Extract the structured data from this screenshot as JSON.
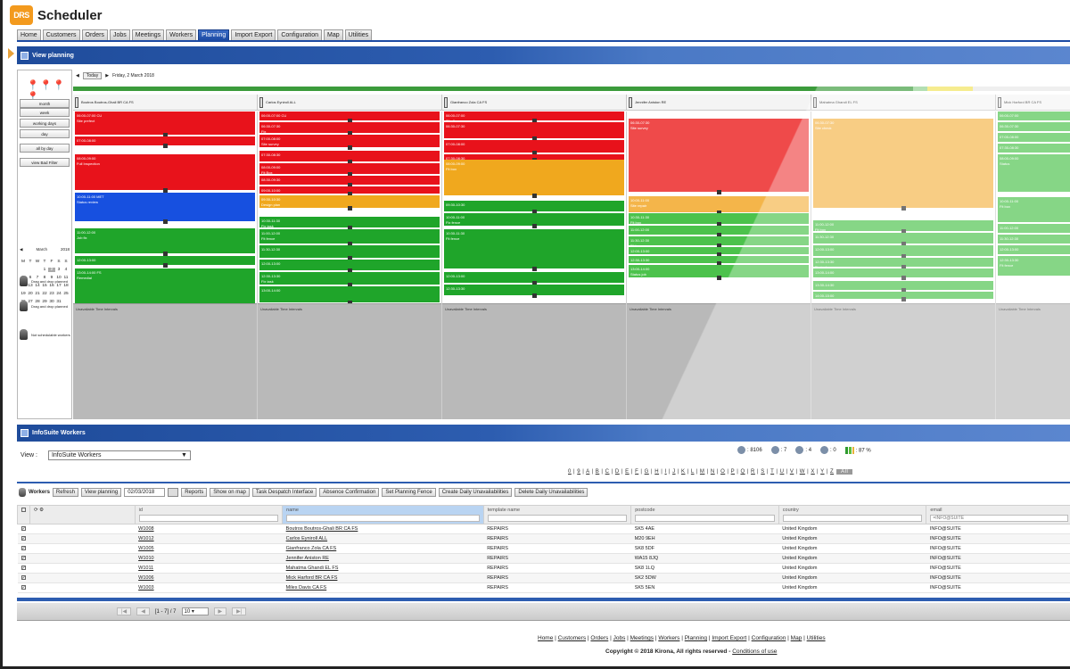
{
  "app": {
    "logo_text": "DRS",
    "title": "Scheduler"
  },
  "nav": [
    "Home",
    "Customers",
    "Orders",
    "Jobs",
    "Meetings",
    "Workers",
    "Planning",
    "Import Export",
    "Configuration",
    "Map",
    "Utilities"
  ],
  "nav_active": "Planning",
  "view_planning": {
    "title": "View planning"
  },
  "left_panel": {
    "buttons": [
      "month",
      "week",
      "working days",
      "day",
      "all by day",
      "view Bad Filter"
    ],
    "month_label": "March",
    "year_label": "2018",
    "weekdays": [
      "M",
      "T",
      "W",
      "T",
      "F",
      "S",
      "S"
    ],
    "days": [
      "",
      "",
      "",
      "1",
      "2",
      "3",
      "4",
      "5",
      "6",
      "7",
      "8",
      "9",
      "10",
      "11",
      "12",
      "13",
      "14",
      "15",
      "16",
      "17",
      "18",
      "19",
      "20",
      "21",
      "22",
      "23",
      "24",
      "25",
      "26",
      "27",
      "28",
      "29",
      "30",
      "31",
      ""
    ],
    "selected_day": "2",
    "groups": [
      "Drag and drop planned",
      "Drag and drop planned",
      "Not schedulable workers"
    ]
  },
  "gantt": {
    "toolbar_btn": "Today",
    "date_label": "Friday, 2 March 2018",
    "progress": {
      "done": 0.84,
      "light": 0.855,
      "marker": 0.9
    },
    "columns": [
      {
        "header": "Boutros Boutros-Ghali BR CA FS",
        "blocks": [
          {
            "c": "r",
            "t": 0,
            "h": 26,
            "l1": "06:00-07:00 CU",
            "l2": "Site prefect"
          },
          {
            "c": "r",
            "t": 28,
            "h": 10,
            "l1": "07:00-08:00",
            "l2": ""
          },
          {
            "c": "r",
            "t": 48,
            "h": 40,
            "l1": "08:00-09:00",
            "l2": "Full Inspection"
          },
          {
            "c": "b",
            "t": 91,
            "h": 32,
            "l1": "10:00-11:00 MET",
            "l2": "Status review"
          },
          {
            "c": "g",
            "t": 131,
            "h": 28,
            "l1": "11:00-12:00",
            "l2": "Job fix"
          },
          {
            "c": "g",
            "t": 162,
            "h": 10,
            "l1": "12:00-13:00",
            "l2": ""
          },
          {
            "c": "g",
            "t": 176,
            "h": 45,
            "l1": "13:00-14:00 FS",
            "l2": "Remedial"
          }
        ]
      },
      {
        "header": "Carlos Eyniroll ALL",
        "blocks": [
          {
            "c": "r",
            "t": 0,
            "h": 10,
            "l1": "06:00-07:00 CU",
            "l2": ""
          },
          {
            "c": "r",
            "t": 12,
            "h": 12,
            "l1": "06:30-07:30",
            "l2": "Fix"
          },
          {
            "c": "r",
            "t": 26,
            "h": 14,
            "l1": "07:00-08:00",
            "l2": "Site survey"
          },
          {
            "c": "r",
            "t": 44,
            "h": 12,
            "l1": "07:30-08:30",
            "l2": ""
          },
          {
            "c": "r",
            "t": 58,
            "h": 12,
            "l1": "08:00-09:00",
            "l2": "Fit Box"
          },
          {
            "c": "r",
            "t": 72,
            "h": 10,
            "l1": "08:30-09:30",
            "l2": ""
          },
          {
            "c": "r",
            "t": 84,
            "h": 8,
            "l1": "09:00-10:00",
            "l2": ""
          },
          {
            "c": "o",
            "t": 94,
            "h": 14,
            "l1": "09:30-10:30",
            "l2": "Design plan"
          },
          {
            "c": "g",
            "t": 118,
            "h": 12,
            "l1": "10:30-11:30",
            "l2": "Fix task"
          },
          {
            "c": "g",
            "t": 132,
            "h": 16,
            "l1": "11:00-12:00",
            "l2": "Fit fence"
          },
          {
            "c": "g",
            "t": 150,
            "h": 14,
            "l1": "11:30-12:30",
            "l2": ""
          },
          {
            "c": "g",
            "t": 166,
            "h": 12,
            "l1": "12:00-13:00",
            "l2": ""
          },
          {
            "c": "g",
            "t": 180,
            "h": 14,
            "l1": "12:30-13:30",
            "l2": "Fix task"
          },
          {
            "c": "g",
            "t": 196,
            "h": 18,
            "l1": "13:00-14:00",
            "l2": ""
          }
        ]
      },
      {
        "header": "Gianfranco Zola CA FS",
        "blocks": [
          {
            "c": "r",
            "t": 0,
            "h": 10,
            "l1": "06:00-07:00",
            "l2": "Site fix"
          },
          {
            "c": "r",
            "t": 12,
            "h": 18,
            "l1": "06:30-07:30",
            "l2": ""
          },
          {
            "c": "r",
            "t": 32,
            "h": 14,
            "l1": "07:00-08:00",
            "l2": ""
          },
          {
            "c": "r",
            "t": 48,
            "h": 6,
            "l1": "07:30-08:30",
            "l2": ""
          },
          {
            "c": "o",
            "t": 54,
            "h": 40,
            "l1": "08:00-09:00",
            "l2": "Fit box"
          },
          {
            "c": "g",
            "t": 100,
            "h": 12,
            "l1": "09:30-10:30",
            "l2": ""
          },
          {
            "c": "g",
            "t": 114,
            "h": 14,
            "l1": "10:00-11:00",
            "l2": "Fix fence"
          },
          {
            "c": "g",
            "t": 132,
            "h": 44,
            "l1": "10:30-11:30",
            "l2": "Fit fence"
          },
          {
            "c": "g",
            "t": 180,
            "h": 12,
            "l1": "12:00-13:00",
            "l2": ""
          },
          {
            "c": "g",
            "t": 194,
            "h": 12,
            "l1": "12:30-13:30",
            "l2": ""
          }
        ]
      },
      {
        "header": "Jennifer Aniston RE",
        "blocks": [
          {
            "c": "lr",
            "t": 8,
            "h": 82,
            "l1": "06:30-07:30",
            "l2": "Site survey"
          },
          {
            "c": "lo",
            "t": 95,
            "h": 18,
            "l1": "10:00-11:00",
            "l2": "Site repair"
          },
          {
            "c": "lg",
            "t": 114,
            "h": 12,
            "l1": "10:30-11:30",
            "l2": "Fit box"
          },
          {
            "c": "lg",
            "t": 128,
            "h": 10,
            "l1": "11:00-12:00",
            "l2": ""
          },
          {
            "c": "lg",
            "t": 140,
            "h": 10,
            "l1": "11:30-12:30",
            "l2": "Fit box"
          },
          {
            "c": "lg",
            "t": 152,
            "h": 8,
            "l1": "12:00-13:00",
            "l2": ""
          },
          {
            "c": "lg",
            "t": 162,
            "h": 8,
            "l1": "12:30-13:30",
            "l2": "Fit fence"
          },
          {
            "c": "lg",
            "t": 172,
            "h": 14,
            "l1": "13:00-14:00",
            "l2": "Status job"
          }
        ]
      },
      {
        "header": "Mahatma Ghandi EL FS",
        "blocks": [
          {
            "c": "lo",
            "t": 8,
            "h": 100,
            "l1": "06:30-07:30",
            "l2": "Site check"
          },
          {
            "c": "lg",
            "t": 122,
            "h": 12,
            "l1": "11:00-12:00",
            "l2": "Fit box"
          },
          {
            "c": "lg",
            "t": 136,
            "h": 12,
            "l1": "11:30-12:30",
            "l2": ""
          },
          {
            "c": "lg",
            "t": 150,
            "h": 12,
            "l1": "12:00-13:00",
            "l2": ""
          },
          {
            "c": "lg",
            "t": 164,
            "h": 10,
            "l1": "12:30-13:30",
            "l2": "Fix task"
          },
          {
            "c": "lg",
            "t": 176,
            "h": 10,
            "l1": "13:00-14:00",
            "l2": ""
          },
          {
            "c": "lg",
            "t": 190,
            "h": 10,
            "l1": "13:30-14:30",
            "l2": ""
          },
          {
            "c": "lg",
            "t": 202,
            "h": 8,
            "l1": "14:00-15:00",
            "l2": ""
          }
        ]
      },
      {
        "header": "Mick Harford BR CA FS",
        "blocks": [
          {
            "c": "lg",
            "t": 0,
            "h": 10,
            "l1": "06:00-07:00",
            "l2": ""
          },
          {
            "c": "lg",
            "t": 12,
            "h": 10,
            "l1": "06:30-07:30",
            "l2": ""
          },
          {
            "c": "lg",
            "t": 24,
            "h": 10,
            "l1": "07:00-08:00",
            "l2": ""
          },
          {
            "c": "lg",
            "t": 36,
            "h": 10,
            "l1": "07:30-08:30",
            "l2": ""
          },
          {
            "c": "lg",
            "t": 48,
            "h": 42,
            "l1": "08:00-09:00",
            "l2": "Status"
          },
          {
            "c": "lg",
            "t": 96,
            "h": 28,
            "l1": "10:00-11:00",
            "l2": "Fit box"
          },
          {
            "c": "lg",
            "t": 126,
            "h": 10,
            "l1": "11:00-12:00",
            "l2": ""
          },
          {
            "c": "lg",
            "t": 138,
            "h": 10,
            "l1": "11:30-12:30",
            "l2": ""
          },
          {
            "c": "lg",
            "t": 150,
            "h": 10,
            "l1": "12:00-13:00",
            "l2": ""
          },
          {
            "c": "lg",
            "t": 162,
            "h": 22,
            "l1": "12:30-13:30",
            "l2": "Fit fence"
          }
        ]
      }
    ],
    "unavail_label": "Unavailable Time Intervals"
  },
  "workers_section": {
    "title": "InfoSuite Workers",
    "view_label": "View :",
    "view_value": "InfoSuite Workers",
    "stats": [
      ": 8106",
      ": 7",
      ": 4",
      ": 0",
      ": 87 %"
    ],
    "alphabet": [
      "0",
      "9",
      "A",
      "B",
      "C",
      "D",
      "E",
      "F",
      "G",
      "H",
      "I",
      "J",
      "K",
      "L",
      "M",
      "N",
      "O",
      "P",
      "Q",
      "R",
      "S",
      "T",
      "U",
      "V",
      "W",
      "X",
      "Y",
      "Z"
    ],
    "all_label": "All",
    "toolbar": {
      "workers_label": "Workers",
      "refresh": "Refresh",
      "view_planning": "View planning",
      "date": "02/03/2018",
      "buttons": [
        "Reports",
        "Show on map",
        "Task Despatch Interface",
        "Absence Confirmation",
        "Set Planning Fence",
        "Create Daily Unavailabilities",
        "Delete Daily Unavailabilities"
      ]
    },
    "columns": [
      "id",
      "name",
      "template name",
      "postcode",
      "country",
      "email"
    ],
    "email_filter": "=INFO@SUITE",
    "rows": [
      {
        "id": "W1008",
        "name": "Boutros Boutros-Ghali BR CA FS",
        "template": "REPAIRS",
        "postcode": "SK5 4AE",
        "country": "United Kingdom",
        "email": "INFO@SUITE"
      },
      {
        "id": "W1012",
        "name": "Carlos Eyniroll ALL",
        "template": "REPAIRS",
        "postcode": "M20 9EH",
        "country": "United Kingdom",
        "email": "INFO@SUITE"
      },
      {
        "id": "W1005",
        "name": "Gianfranco Zola CA FS",
        "template": "REPAIRS",
        "postcode": "SK8 5DF",
        "country": "United Kingdom",
        "email": "INFO@SUITE"
      },
      {
        "id": "W1010",
        "name": "Jennifer Aniston RE",
        "template": "REPAIRS",
        "postcode": "WA15 8JQ",
        "country": "United Kingdom",
        "email": "INFO@SUITE"
      },
      {
        "id": "W1011",
        "name": "Mahatma Ghandi EL FS",
        "template": "REPAIRS",
        "postcode": "SK8 1LQ",
        "country": "United Kingdom",
        "email": "INFO@SUITE"
      },
      {
        "id": "W1006",
        "name": "Mick Harford BR CA FS",
        "template": "REPAIRS",
        "postcode": "SK2 5DW",
        "country": "United Kingdom",
        "email": "INFO@SUITE"
      },
      {
        "id": "W1003",
        "name": "Miles Davis CA FS",
        "template": "REPAIRS",
        "postcode": "SK5 5EN",
        "country": "United Kingdom",
        "email": "INFO@SUITE"
      }
    ],
    "pager": {
      "range": "[1 - 7] / 7",
      "page_size": "10"
    }
  },
  "footer": {
    "links": [
      "Home",
      "Customers",
      "Orders",
      "Jobs",
      "Meetings",
      "Workers",
      "Planning",
      "Import Export",
      "Configuration",
      "Map",
      "Utilities"
    ],
    "copyright": "Copyright © 2018 Kirona, All rights reserved -",
    "conditions": "Conditions of use"
  }
}
